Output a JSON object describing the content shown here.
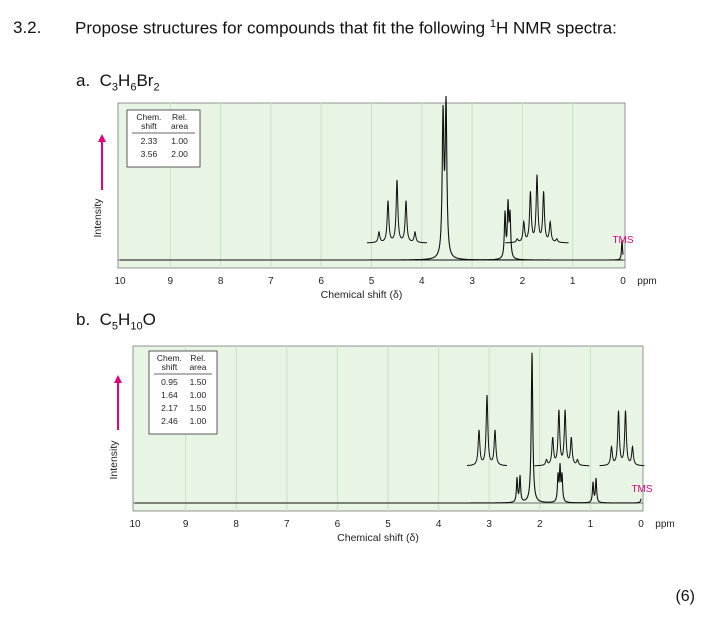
{
  "question": {
    "number": "3.2.",
    "text_prefix": "Propose structures for compounds that fit the following ",
    "text_sup": "1",
    "text_suffix": "H NMR spectra:",
    "marks": "(6)"
  },
  "spectra": [
    {
      "part": "a.",
      "formula": [
        {
          "t": "C"
        },
        {
          "t": "3",
          "sub": true
        },
        {
          "t": "H"
        },
        {
          "t": "6",
          "sub": true
        },
        {
          "t": "Br"
        },
        {
          "t": "2",
          "sub": true
        }
      ],
      "table": {
        "headers": [
          "Chem.\nshift",
          "Rel.\narea"
        ],
        "rows": [
          [
            "2.33",
            "1.00"
          ],
          [
            "3.56",
            "2.00"
          ]
        ]
      },
      "y_label": "Intensity",
      "x_label": "Chemical shift (δ)",
      "ticks": [
        "10",
        "9",
        "8",
        "7",
        "6",
        "5",
        "4",
        "3",
        "2",
        "1",
        "0"
      ],
      "unit": "ppm",
      "reference": "TMS"
    },
    {
      "part": "b.",
      "formula": [
        {
          "t": "C"
        },
        {
          "t": "5",
          "sub": true
        },
        {
          "t": "H"
        },
        {
          "t": "10",
          "sub": true
        },
        {
          "t": "O"
        }
      ],
      "table": {
        "headers": [
          "Chem.\nshift",
          "Rel.\narea"
        ],
        "rows": [
          [
            "0.95",
            "1.50"
          ],
          [
            "1.64",
            "1.00"
          ],
          [
            "2.17",
            "1.50"
          ],
          [
            "2.46",
            "1.00"
          ]
        ]
      },
      "y_label": "Intensity",
      "x_label": "Chemical shift (δ)",
      "ticks": [
        "10",
        "9",
        "8",
        "7",
        "6",
        "5",
        "4",
        "3",
        "2",
        "1",
        "0"
      ],
      "unit": "ppm",
      "reference": "TMS"
    }
  ],
  "colors": {
    "plot_bg": "#e8f4e4",
    "grid": "#c9e1c2",
    "accent": "#e6007e",
    "tms": "#e6007e"
  }
}
